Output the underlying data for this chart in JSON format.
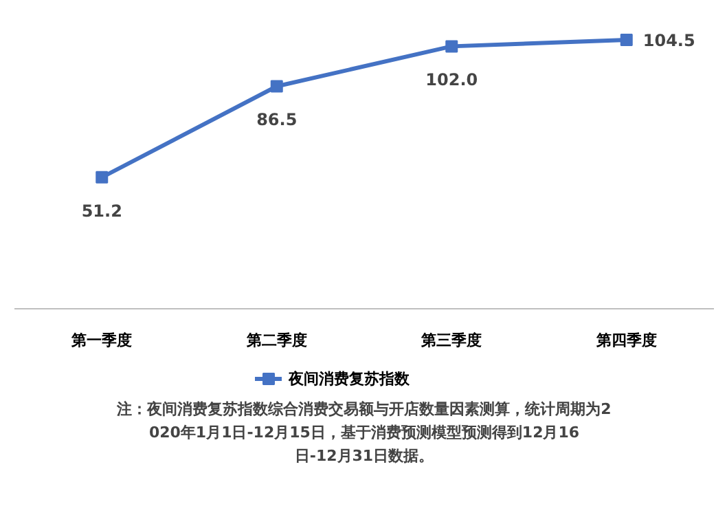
{
  "chart_data": {
    "type": "line",
    "categories": [
      "第一季度",
      "第二季度",
      "第三季度",
      "第四季度"
    ],
    "series": [
      {
        "name": "夜间消费复苏指数",
        "color": "#4472c4",
        "values": [
          51.2,
          86.5,
          102.0,
          104.5
        ],
        "value_labels": [
          "51.2",
          "86.5",
          "102.0",
          "104.5"
        ]
      }
    ],
    "data_labels": true,
    "marker": "square",
    "line_style": "solid",
    "legend": "bottom",
    "grid": false,
    "annotations": [
      "注：夜间消费复苏指数综合消费交易额与开店数量因素测算，统计周期为2020年1月1日-12月15日，基于消费预测模型预测得到12月16日-12月31日数据。"
    ]
  }
}
